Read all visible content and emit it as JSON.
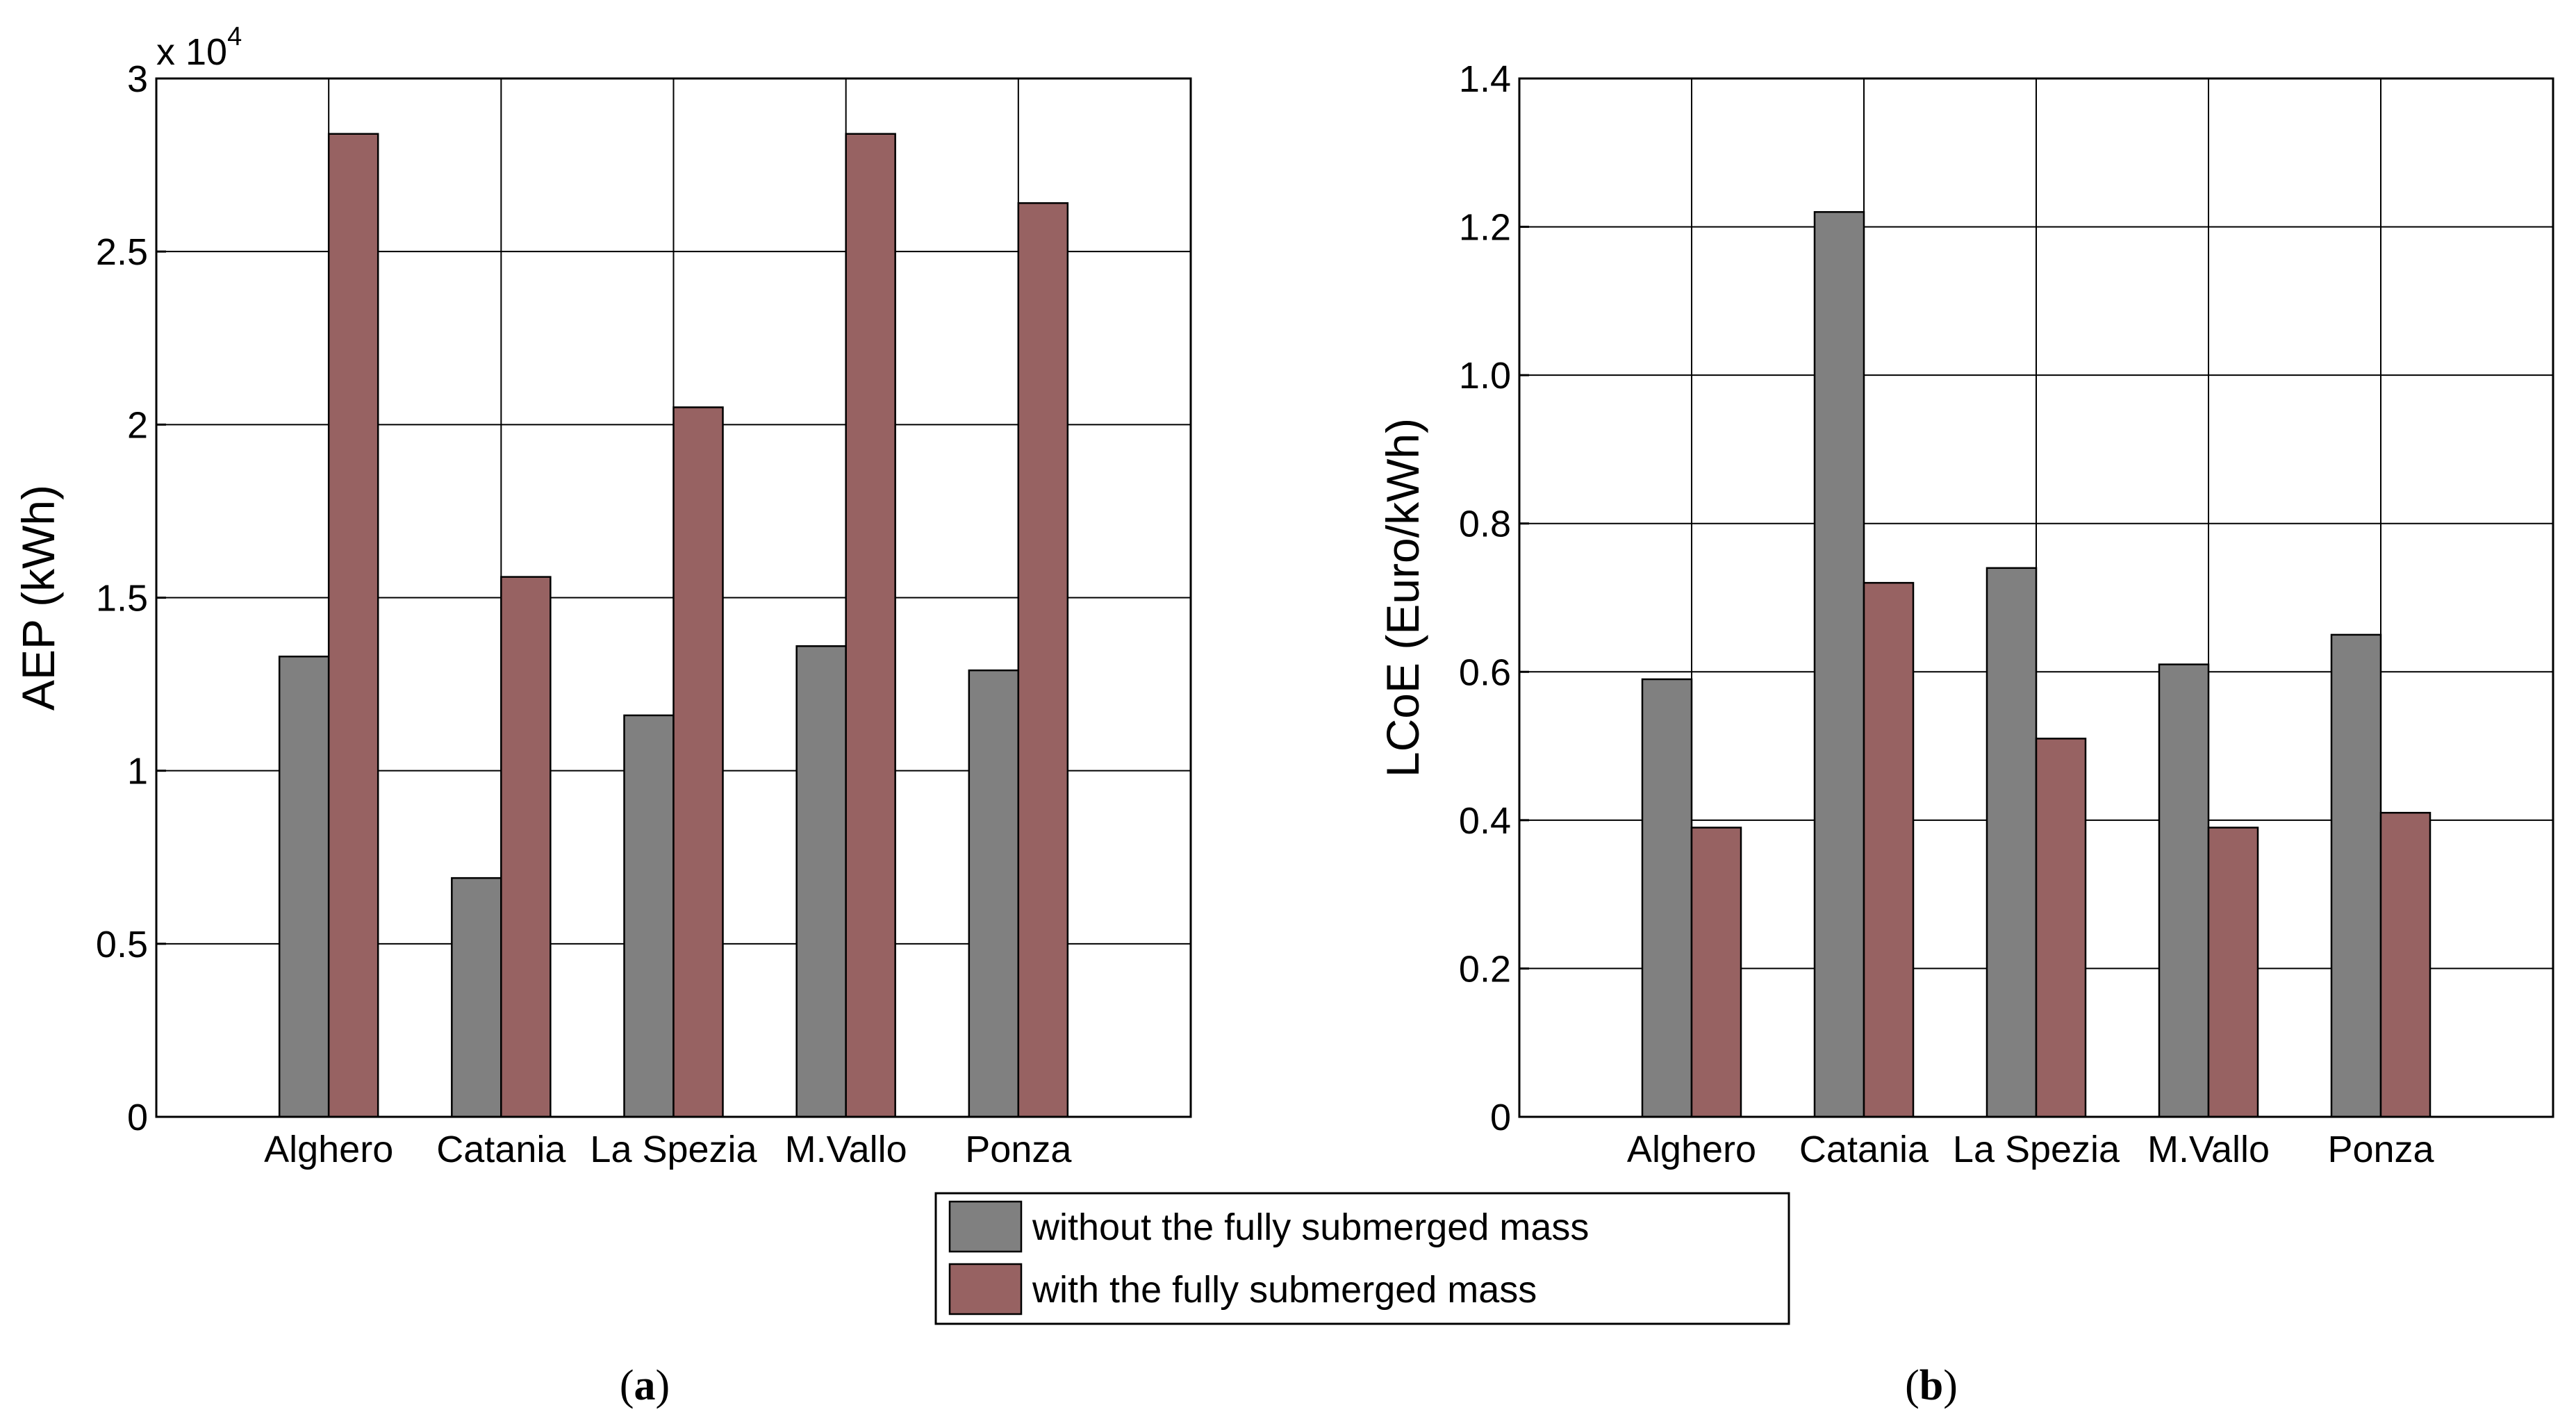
{
  "chart_data": [
    {
      "type": "bar",
      "title": "",
      "xlabel": "",
      "ylabel": "AEP (kWh)",
      "ylim": [
        0,
        30000
      ],
      "yticks": [
        0,
        5000,
        10000,
        15000,
        20000,
        25000,
        30000
      ],
      "ytick_labels": [
        "0",
        "0.5",
        "1",
        "1.5",
        "2",
        "2.5",
        "3"
      ],
      "y_multiplier_base": "x 10",
      "y_multiplier_exponent": "4",
      "categories": [
        "Alghero",
        "Catania",
        "La Spezia",
        "M.Vallo",
        "Ponza"
      ],
      "grid": true,
      "series": [
        {
          "name": "without the fully submerged mass",
          "values": [
            13300,
            6900,
            11600,
            13600,
            12900
          ]
        },
        {
          "name": "with the fully submerged mass",
          "values": [
            28400,
            15600,
            20500,
            28400,
            26400
          ]
        }
      ],
      "caption": "a"
    },
    {
      "type": "bar",
      "title": "",
      "xlabel": "",
      "ylabel": "LCoE (Euro/kWh)",
      "ylim": [
        0,
        1.4
      ],
      "yticks": [
        0,
        0.2,
        0.4,
        0.6,
        0.8,
        1.0,
        1.2,
        1.4
      ],
      "ytick_labels": [
        "0",
        "0.2",
        "0.4",
        "0.6",
        "0.8",
        "1.0",
        "1.2",
        "1.4"
      ],
      "categories": [
        "Alghero",
        "Catania",
        "La Spezia",
        "M.Vallo",
        "Ponza"
      ],
      "grid": true,
      "series": [
        {
          "name": "without the fully submerged mass",
          "values": [
            0.59,
            1.22,
            0.74,
            0.61,
            0.65
          ]
        },
        {
          "name": "with the fully submerged mass",
          "values": [
            0.39,
            0.72,
            0.51,
            0.39,
            0.41
          ]
        }
      ],
      "caption": "b"
    }
  ],
  "legend": {
    "placement": "bottom-center",
    "entries": [
      {
        "label": "without the fully submerged mass",
        "color": "#808080"
      },
      {
        "label": "with the fully submerged mass",
        "color": "#976262"
      }
    ]
  },
  "colors": {
    "without": "#808080",
    "with": "#976262"
  }
}
